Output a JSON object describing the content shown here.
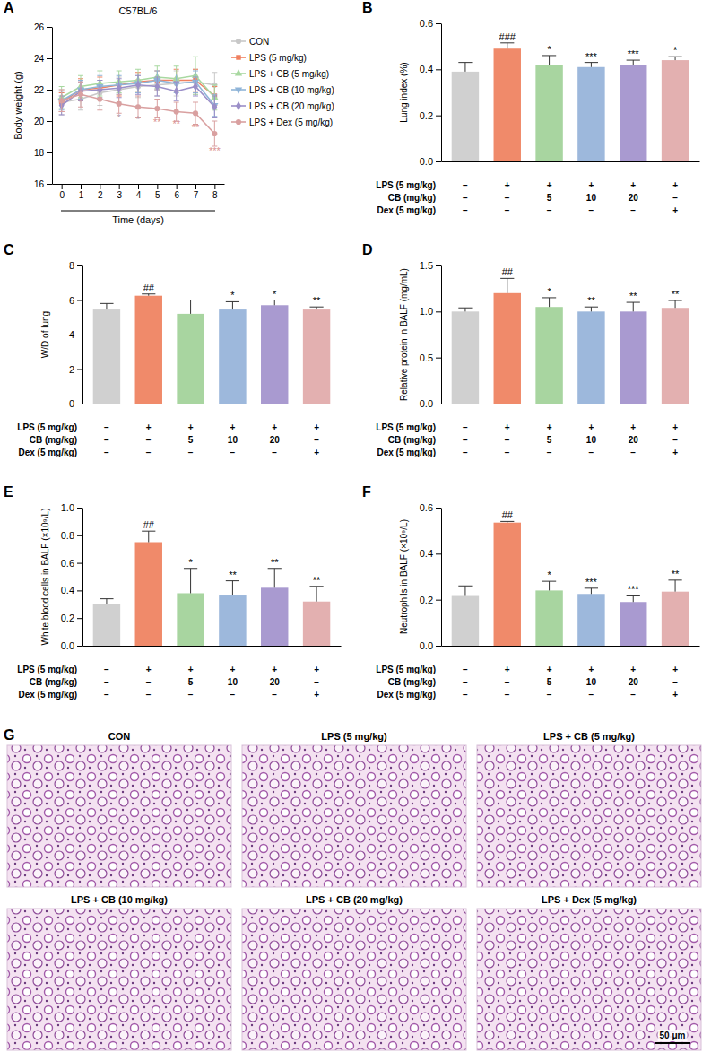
{
  "chart_data": [
    {
      "type": "line",
      "panel": "A",
      "title": "C57BL/6",
      "x_label": "Time (days)",
      "y_label": "Body weight (g)",
      "x": [
        0,
        1,
        2,
        3,
        4,
        5,
        6,
        7,
        8
      ],
      "xlim": [
        -0.5,
        8.5
      ],
      "xticks": [
        0,
        1,
        2,
        3,
        4,
        5,
        6,
        7,
        8
      ],
      "ylim": [
        16,
        26
      ],
      "yticks": [
        16,
        18,
        20,
        22,
        24,
        26
      ],
      "legend": "right",
      "series": [
        {
          "name": "CON",
          "color": "#c8c8c8",
          "marker": "circle",
          "values": [
            21.2,
            21.4,
            21.8,
            22.0,
            22.2,
            22.3,
            22.4,
            22.5,
            22.3
          ],
          "errors": [
            0.8,
            0.7,
            0.8,
            0.8,
            0.7,
            0.7,
            0.8,
            0.8,
            0.8
          ]
        },
        {
          "name": "LPS (5 mg/kg)",
          "color": "#f08060",
          "marker": "square",
          "values": [
            21.2,
            22.0,
            22.1,
            22.3,
            22.5,
            22.6,
            22.6,
            22.6,
            21.6
          ],
          "errors": [
            0.6,
            0.7,
            0.7,
            0.7,
            0.6,
            0.6,
            0.7,
            0.7,
            0.6
          ]
        },
        {
          "name": "LPS + CB (5 mg/kg)",
          "color": "#a8d8a0",
          "marker": "triangle",
          "values": [
            21.5,
            22.2,
            22.4,
            22.5,
            22.6,
            22.8,
            22.7,
            22.9,
            21.5
          ],
          "errors": [
            0.7,
            0.7,
            0.8,
            0.7,
            0.7,
            0.7,
            0.8,
            1.2,
            0.8
          ]
        },
        {
          "name": "LPS + CB (10 mg/kg)",
          "color": "#8fb4d8",
          "marker": "triangle-down",
          "values": [
            21.3,
            22.0,
            22.2,
            22.3,
            22.4,
            22.6,
            22.4,
            22.5,
            21.0
          ],
          "errors": [
            0.6,
            0.6,
            0.7,
            0.6,
            0.6,
            0.6,
            0.6,
            0.7,
            0.7
          ]
        },
        {
          "name": "LPS + CB (20 mg/kg)",
          "color": "#9b8fc8",
          "marker": "diamond",
          "values": [
            21.0,
            21.9,
            22.0,
            22.1,
            22.3,
            22.2,
            21.9,
            22.2,
            20.9
          ],
          "errors": [
            0.6,
            0.6,
            0.6,
            0.6,
            0.6,
            0.6,
            0.6,
            0.6,
            0.7
          ]
        },
        {
          "name": "LPS + Dex (5 mg/kg)",
          "color": "#d9a0a0",
          "marker": "circle",
          "values": [
            21.3,
            21.7,
            21.4,
            21.1,
            20.9,
            20.8,
            20.6,
            20.5,
            19.2
          ],
          "errors": [
            0.7,
            0.8,
            0.7,
            0.6,
            0.7,
            0.6,
            0.6,
            0.7,
            0.8
          ]
        }
      ],
      "annotations": [
        {
          "x": 3,
          "y": 20.0,
          "text": "*",
          "color": "#b59aa8"
        },
        {
          "x": 4,
          "y": 19.9,
          "text": "*",
          "color": "#b59aa8"
        },
        {
          "x": 5,
          "y": 19.7,
          "text": "**",
          "color": "#d98f8f"
        },
        {
          "x": 6,
          "y": 19.6,
          "text": "**",
          "color": "#d98f8f"
        },
        {
          "x": 7,
          "y": 19.4,
          "text": "**",
          "color": "#d98f8f"
        },
        {
          "x": 8,
          "y": 17.9,
          "text": "***",
          "color": "#d98f8f"
        }
      ]
    },
    {
      "type": "bar",
      "panel": "B",
      "y_label": "Lung index (%)",
      "categories": [
        null,
        null,
        null,
        null,
        null,
        null
      ],
      "colors": [
        "#d0d0d0",
        "#f08a6a",
        "#a8d5a0",
        "#9db8dc",
        "#a99ad0",
        "#e3b0b0"
      ],
      "values": [
        0.39,
        0.49,
        0.42,
        0.41,
        0.42,
        0.44
      ],
      "errors": [
        0.04,
        0.025,
        0.04,
        0.02,
        0.02,
        0.015
      ],
      "annotations": [
        null,
        "###",
        "*",
        "***",
        "***",
        "*"
      ],
      "ylim": [
        0,
        0.6
      ],
      "yticks": [
        {
          "value": 0,
          "label": "0.0"
        },
        0.2,
        0.4,
        0.6
      ],
      "x_table": [
        {
          "label": "LPS (5 mg/kg)",
          "cells": [
            "−",
            "+",
            "+",
            "+",
            "+",
            "+"
          ]
        },
        {
          "label": "CB (mg/kg)",
          "cells": [
            "−",
            "−",
            "5",
            "10",
            "20",
            "−"
          ]
        },
        {
          "label": "Dex (5 mg/kg)",
          "cells": [
            "−",
            "−",
            "−",
            "−",
            "−",
            "+"
          ]
        }
      ]
    },
    {
      "type": "bar",
      "panel": "C",
      "y_label": "W/D of lung",
      "categories": [
        null,
        null,
        null,
        null,
        null,
        null
      ],
      "colors": [
        "#d0d0d0",
        "#f08a6a",
        "#a8d5a0",
        "#9db8dc",
        "#a99ad0",
        "#e3b0b0"
      ],
      "values": [
        5.45,
        6.25,
        5.2,
        5.45,
        5.7,
        5.45
      ],
      "errors": [
        0.35,
        0.1,
        0.8,
        0.45,
        0.3,
        0.15
      ],
      "annotations": [
        null,
        "##",
        null,
        "*",
        "*",
        "**"
      ],
      "ylim": [
        0,
        8
      ],
      "yticks": [
        0,
        2,
        4,
        6,
        8
      ],
      "x_table": [
        {
          "label": "LPS (5 mg/kg)",
          "cells": [
            "−",
            "+",
            "+",
            "+",
            "+",
            "+"
          ]
        },
        {
          "label": "CB (mg/kg)",
          "cells": [
            "−",
            "−",
            "5",
            "10",
            "20",
            "−"
          ]
        },
        {
          "label": "Dex (5 mg/kg)",
          "cells": [
            "−",
            "−",
            "−",
            "−",
            "−",
            "+"
          ]
        }
      ]
    },
    {
      "type": "bar",
      "panel": "D",
      "y_label": "Relative protein in BALF (mg/mL)",
      "categories": [
        null,
        null,
        null,
        null,
        null,
        null
      ],
      "colors": [
        "#d0d0d0",
        "#f08a6a",
        "#a8d5a0",
        "#9db8dc",
        "#a99ad0",
        "#e3b0b0"
      ],
      "values": [
        1.0,
        1.2,
        1.05,
        1.0,
        1.0,
        1.04
      ],
      "errors": [
        0.04,
        0.16,
        0.1,
        0.05,
        0.1,
        0.08
      ],
      "annotations": [
        null,
        "##",
        "*",
        "**",
        "**",
        "**"
      ],
      "ylim": [
        0,
        1.5
      ],
      "yticks": [
        {
          "value": 0,
          "label": "0.0"
        },
        0.5,
        {
          "value": 1,
          "label": "1.0"
        },
        1.5
      ],
      "x_table": [
        {
          "label": "LPS (5 mg/kg)",
          "cells": [
            "−",
            "+",
            "+",
            "+",
            "+",
            "+"
          ]
        },
        {
          "label": "CB (mg/kg)",
          "cells": [
            "−",
            "−",
            "5",
            "10",
            "20",
            "−"
          ]
        },
        {
          "label": "Dex (5 mg/kg)",
          "cells": [
            "−",
            "−",
            "−",
            "−",
            "−",
            "+"
          ]
        }
      ]
    },
    {
      "type": "bar",
      "panel": "E",
      "y_label": "White blood cells in BALF (×10⁹/L)",
      "categories": [
        null,
        null,
        null,
        null,
        null,
        null
      ],
      "colors": [
        "#d0d0d0",
        "#f08a6a",
        "#a8d5a0",
        "#9db8dc",
        "#a99ad0",
        "#e3b0b0"
      ],
      "values": [
        0.3,
        0.75,
        0.38,
        0.37,
        0.42,
        0.32
      ],
      "errors": [
        0.04,
        0.08,
        0.18,
        0.1,
        0.14,
        0.11
      ],
      "annotations": [
        null,
        "##",
        "*",
        "**",
        "**",
        "**"
      ],
      "ylim": [
        0,
        1
      ],
      "yticks": [
        {
          "value": 0,
          "label": "0.0"
        },
        0.2,
        0.4,
        0.6,
        0.8,
        {
          "value": 1,
          "label": "1.0"
        }
      ],
      "x_table": [
        {
          "label": "LPS (5 mg/kg)",
          "cells": [
            "−",
            "+",
            "+",
            "+",
            "+",
            "+"
          ]
        },
        {
          "label": "CB (mg/kg)",
          "cells": [
            "−",
            "−",
            "5",
            "10",
            "20",
            "−"
          ]
        },
        {
          "label": "Dex (5 mg/kg)",
          "cells": [
            "−",
            "−",
            "−",
            "−",
            "−",
            "+"
          ]
        }
      ]
    },
    {
      "type": "bar",
      "panel": "F",
      "y_label": "Neutrophils in BALF (×10⁹/L)",
      "categories": [
        null,
        null,
        null,
        null,
        null,
        null
      ],
      "colors": [
        "#d0d0d0",
        "#f08a6a",
        "#a8d5a0",
        "#9db8dc",
        "#a99ad0",
        "#e3b0b0"
      ],
      "values": [
        0.22,
        0.535,
        0.24,
        0.225,
        0.19,
        0.235
      ],
      "errors": [
        0.04,
        0.005,
        0.04,
        0.025,
        0.03,
        0.05
      ],
      "annotations": [
        null,
        "##",
        "*",
        "***",
        "***",
        "**"
      ],
      "ylim": [
        0,
        0.6
      ],
      "yticks": [
        {
          "value": 0,
          "label": "0.0"
        },
        0.2,
        0.4,
        0.6
      ],
      "x_table": [
        {
          "label": "LPS (5 mg/kg)",
          "cells": [
            "−",
            "+",
            "+",
            "+",
            "+",
            "+"
          ]
        },
        {
          "label": "CB (mg/kg)",
          "cells": [
            "−",
            "−",
            "5",
            "10",
            "20",
            "−"
          ]
        },
        {
          "label": "Dex (5 mg/kg)",
          "cells": [
            "−",
            "−",
            "−",
            "−",
            "−",
            "+"
          ]
        }
      ]
    },
    {
      "type": "image_grid",
      "panel": "G",
      "titles": [
        "CON",
        "LPS (5 mg/kg)",
        "LPS + CB (5 mg/kg)",
        "LPS + CB (10 mg/kg)",
        "LPS + CB (20 mg/kg)",
        "LPS + Dex (5 mg/kg)"
      ],
      "scale_bar": "50 μm"
    }
  ]
}
